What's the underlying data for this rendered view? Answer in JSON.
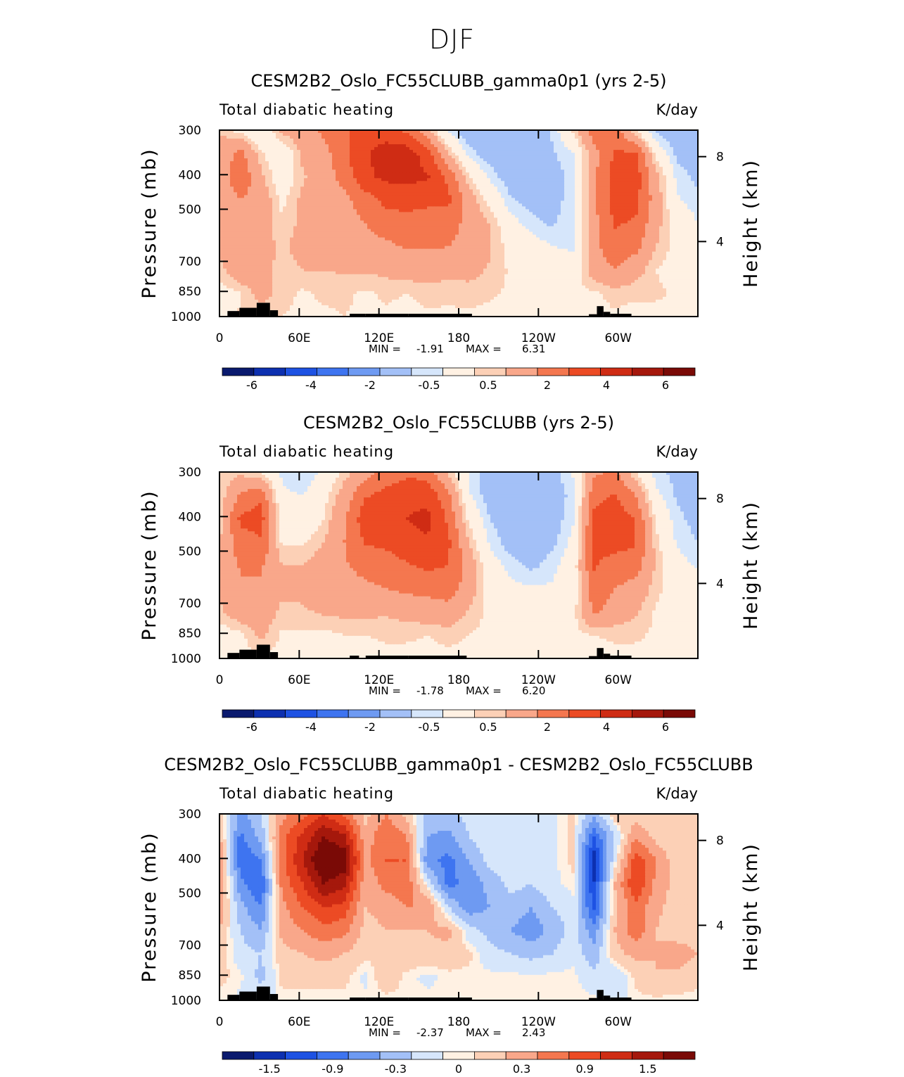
{
  "figure": {
    "title": "DJF"
  },
  "panels": [
    {
      "title": "CESM2B2_Oslo_FC55CLUBB_gamma0p1 (yrs 2-5)",
      "left_label": "Total diabatic heating",
      "right_label": "K/day",
      "ylabel": "Pressure (mb)",
      "ylabel_right": "Height (km)",
      "stats": {
        "min_label": "MIN =",
        "min": "-1.91",
        "max_label": "MAX =",
        "max": "6.31"
      }
    },
    {
      "title": "CESM2B2_Oslo_FC55CLUBB (yrs 2-5)",
      "left_label": "Total diabatic heating",
      "right_label": "K/day",
      "ylabel": "Pressure (mb)",
      "ylabel_right": "Height (km)",
      "stats": {
        "min_label": "MIN =",
        "min": "-1.78",
        "max_label": "MAX =",
        "max": "6.20"
      }
    },
    {
      "title": "CESM2B2_Oslo_FC55CLUBB_gamma0p1 - CESM2B2_Oslo_FC55CLUBB",
      "left_label": "Total diabatic heating",
      "right_label": "K/day",
      "ylabel": "Pressure (mb)",
      "ylabel_right": "Height (km)",
      "stats": {
        "min_label": "MIN =",
        "min": "-2.37",
        "max_label": "MAX =",
        "max": "2.43"
      }
    }
  ],
  "chart_data": [
    {
      "type": "heatmap",
      "title": "CESM2B2_Oslo_FC55CLUBB_gamma0p1 (yrs 2-5)",
      "x_ticks": [
        "0",
        "60E",
        "120E",
        "180",
        "120W",
        "60W"
      ],
      "y_ticks": [
        "300",
        "400",
        "500",
        "700",
        "850",
        "1000"
      ],
      "y_ticks_right": [
        "8",
        "4"
      ],
      "xlim": [
        0,
        360
      ],
      "ylim": [
        1000,
        300
      ],
      "y_scale": "log",
      "colorbar_labels": [
        "-6",
        "-4",
        "-2",
        "-0.5",
        "0.5",
        "2",
        "4",
        "6"
      ],
      "colors": [
        "#0a1a6e",
        "#0d30b0",
        "#1e52e3",
        "#3e74f0",
        "#6e9af2",
        "#a3c0f7",
        "#d6e6fb",
        "#fff1e3",
        "#fcd0b6",
        "#f9a78a",
        "#f4774f",
        "#ec4b24",
        "#cf2c14",
        "#a5180c",
        "#7a0a06"
      ],
      "values": [
        [
          1.0,
          0.2,
          -0.4,
          1.2,
          1.6,
          2.2,
          2.9,
          3.4,
          3.6,
          2.8,
          1.2,
          -0.7,
          -1.6,
          -1.8,
          -1.7,
          -1.4,
          -0.9,
          0.6,
          2.6,
          2.6,
          0.4,
          -1.2,
          -1.6,
          -1.5
        ],
        [
          1.2,
          2.4,
          0.6,
          -0.3,
          1.2,
          1.6,
          2.8,
          3.9,
          4.4,
          4.6,
          3.5,
          1.0,
          -0.7,
          -1.5,
          -1.6,
          -1.6,
          -1.1,
          -0.6,
          1.6,
          3.1,
          3.2,
          0.2,
          -1.2,
          -1.4
        ],
        [
          1.3,
          2.8,
          1.2,
          -0.1,
          0.9,
          1.4,
          2.4,
          3.8,
          4.2,
          4.3,
          4.1,
          2.8,
          0.6,
          -0.6,
          -1.5,
          -1.5,
          -1.3,
          -0.8,
          1.8,
          3.5,
          3.6,
          1.3,
          -0.7,
          -1.2
        ],
        [
          1.2,
          2.0,
          1.6,
          0.3,
          1.2,
          1.3,
          1.7,
          2.5,
          3.3,
          3.5,
          3.2,
          3.2,
          1.5,
          0.2,
          -0.9,
          -1.3,
          -1.3,
          -0.7,
          1.8,
          3.4,
          3.3,
          1.5,
          -0.4,
          -0.8
        ],
        [
          1.4,
          2.0,
          1.4,
          0.6,
          1.2,
          1.6,
          1.6,
          2.0,
          2.4,
          2.5,
          2.6,
          2.4,
          1.7,
          1.0,
          -0.2,
          -0.8,
          -1.1,
          -0.6,
          1.7,
          3.1,
          2.9,
          1.3,
          0.1,
          -0.5
        ],
        [
          1.2,
          1.9,
          1.4,
          0.8,
          1.4,
          1.6,
          1.6,
          1.8,
          1.8,
          2.1,
          2.1,
          2.0,
          1.7,
          1.1,
          0.2,
          -0.1,
          -0.5,
          -0.6,
          1.7,
          2.6,
          2.3,
          1.0,
          0.2,
          0.2
        ],
        [
          0.7,
          1.8,
          1.6,
          0.6,
          1.0,
          1.0,
          1.1,
          1.1,
          1.2,
          1.4,
          1.4,
          1.3,
          1.3,
          0.9,
          0.4,
          0.1,
          0.0,
          -0.1,
          1.5,
          2.0,
          1.4,
          0.5,
          0.2,
          0.1
        ],
        [
          0.2,
          0.4,
          1.4,
          0.7,
          0.4,
          0.6,
          0.6,
          0.4,
          0.6,
          0.5,
          0.7,
          0.6,
          0.7,
          0.6,
          0.4,
          0.3,
          0.3,
          0.4,
          0.4,
          0.7,
          0.6,
          0.6,
          0.4,
          0.4
        ],
        [
          0.2,
          0.6,
          0.5,
          0.5,
          0.4,
          0.4,
          0.5,
          0.4,
          0.4,
          0.3,
          0.4,
          0.4,
          0.4,
          0.3,
          0.3,
          0.4,
          0.3,
          0.3,
          0.3,
          0.4,
          0.3,
          0.3,
          0.3,
          0.3
        ]
      ]
    },
    {
      "type": "heatmap",
      "title": "CESM2B2_Oslo_FC55CLUBB (yrs 2-5)",
      "x_ticks": [
        "0",
        "60E",
        "120E",
        "180",
        "120W",
        "60W"
      ],
      "y_ticks": [
        "300",
        "400",
        "500",
        "700",
        "850",
        "1000"
      ],
      "y_ticks_right": [
        "8",
        "4"
      ],
      "xlim": [
        0,
        360
      ],
      "ylim": [
        1000,
        300
      ],
      "y_scale": "log",
      "colorbar_labels": [
        "-6",
        "-4",
        "-2",
        "-0.5",
        "0.5",
        "2",
        "4",
        "6"
      ],
      "colors": [
        "#0a1a6e",
        "#0d30b0",
        "#1e52e3",
        "#3e74f0",
        "#6e9af2",
        "#a3c0f7",
        "#d6e6fb",
        "#fff1e3",
        "#fcd0b6",
        "#f9a78a",
        "#f4774f",
        "#ec4b24",
        "#cf2c14",
        "#a5180c",
        "#7a0a06"
      ],
      "values": [
        [
          0.5,
          0.8,
          0.4,
          -0.6,
          -1.0,
          -0.3,
          0.7,
          1.5,
          2.4,
          2.8,
          2.6,
          0.8,
          -0.6,
          -1.5,
          -1.6,
          -1.6,
          -1.4,
          -0.4,
          1.8,
          2.2,
          0.5,
          -0.8,
          -1.2,
          -1.6
        ],
        [
          0.6,
          2.1,
          2.8,
          -0.4,
          -0.5,
          0.2,
          1.4,
          2.9,
          3.3,
          3.6,
          3.7,
          2.3,
          -0.4,
          -1.4,
          -1.5,
          -1.6,
          -1.4,
          -0.8,
          2.7,
          3.1,
          2.0,
          -0.3,
          -1.1,
          -1.5
        ],
        [
          0.7,
          3.2,
          3.4,
          0.2,
          -0.3,
          0.5,
          1.9,
          3.6,
          3.8,
          4.0,
          4.3,
          2.8,
          0.3,
          -1.0,
          -1.5,
          -1.6,
          -1.4,
          -0.6,
          3.2,
          3.5,
          3.0,
          0.3,
          -0.8,
          -1.3
        ],
        [
          0.9,
          2.6,
          2.9,
          0.4,
          0.4,
          1.0,
          2.0,
          3.1,
          3.2,
          3.6,
          3.9,
          3.2,
          1.0,
          -0.6,
          -1.4,
          -1.6,
          -1.2,
          -0.3,
          3.3,
          3.4,
          3.1,
          0.7,
          -0.6,
          -1.0
        ],
        [
          1.1,
          2.1,
          2.1,
          1.0,
          1.0,
          1.4,
          1.9,
          2.3,
          2.6,
          2.9,
          3.2,
          3.0,
          1.6,
          -0.1,
          -0.7,
          -1.2,
          -0.7,
          0.0,
          3.1,
          2.6,
          2.5,
          0.9,
          -0.2,
          -0.6
        ],
        [
          1.2,
          1.9,
          1.9,
          1.2,
          1.2,
          1.5,
          1.7,
          1.8,
          2.0,
          2.2,
          2.3,
          2.5,
          1.5,
          0.0,
          -0.3,
          -0.4,
          -0.4,
          0.0,
          2.6,
          2.0,
          1.6,
          0.7,
          0.0,
          -0.2
        ],
        [
          0.8,
          1.6,
          1.6,
          0.8,
          0.9,
          1.1,
          1.2,
          1.2,
          1.1,
          1.3,
          1.5,
          1.6,
          0.9,
          0.3,
          0.0,
          -0.1,
          0.1,
          0.2,
          2.2,
          1.6,
          1.1,
          0.4,
          0.1,
          0.1
        ],
        [
          0.1,
          0.3,
          1.2,
          0.4,
          0.4,
          0.3,
          0.5,
          0.5,
          0.6,
          0.6,
          0.5,
          0.7,
          0.5,
          0.3,
          0.3,
          0.3,
          0.3,
          0.4,
          0.5,
          0.6,
          0.6,
          0.4,
          0.3,
          0.3
        ],
        [
          0.1,
          0.3,
          0.3,
          0.3,
          0.3,
          0.3,
          0.3,
          0.3,
          0.3,
          0.3,
          0.3,
          0.3,
          0.3,
          0.3,
          0.3,
          0.3,
          0.3,
          0.3,
          0.3,
          0.3,
          0.3,
          0.3,
          0.3,
          0.3
        ]
      ]
    },
    {
      "type": "heatmap",
      "title": "CESM2B2_Oslo_FC55CLUBB_gamma0p1 - CESM2B2_Oslo_FC55CLUBB",
      "x_ticks": [
        "0",
        "60E",
        "120E",
        "180",
        "120W",
        "60W"
      ],
      "y_ticks": [
        "300",
        "400",
        "500",
        "700",
        "850",
        "1000"
      ],
      "y_ticks_right": [
        "8",
        "4"
      ],
      "xlim": [
        0,
        360
      ],
      "ylim": [
        1000,
        300
      ],
      "y_scale": "log",
      "colorbar_labels": [
        "-1.5",
        "-0.9",
        "-0.3",
        "0",
        "0.3",
        "0.9",
        "1.5"
      ],
      "colors": [
        "#0a1a6e",
        "#0d30b0",
        "#1e52e3",
        "#3e74f0",
        "#6e9af2",
        "#a3c0f7",
        "#d6e6fb",
        "#fff1e3",
        "#fcd0b6",
        "#f9a78a",
        "#f4774f",
        "#ec4b24",
        "#cf2c14",
        "#a5180c",
        "#7a0a06"
      ],
      "values": [
        [
          0.3,
          -0.7,
          -0.3,
          0.5,
          0.8,
          1.2,
          0.8,
          0.2,
          0.6,
          0.2,
          -0.4,
          -0.4,
          -0.2,
          -0.1,
          -0.1,
          -0.1,
          -0.1,
          0.1,
          -0.5,
          0.2,
          0.1,
          0.1,
          0.1,
          0.1
        ],
        [
          0.4,
          -1.0,
          -0.5,
          0.8,
          1.3,
          1.8,
          1.6,
          0.4,
          0.9,
          0.6,
          -0.6,
          -0.7,
          -0.3,
          -0.1,
          -0.1,
          -0.1,
          -0.1,
          0.1,
          -1.2,
          -0.3,
          0.6,
          0.2,
          0.1,
          0.1
        ],
        [
          0.5,
          -1.1,
          -0.9,
          0.8,
          1.5,
          2.2,
          2.0,
          0.5,
          0.9,
          0.9,
          -0.8,
          -1.0,
          -0.6,
          -0.2,
          -0.1,
          -0.2,
          -0.1,
          0.1,
          -1.7,
          -0.1,
          1.1,
          0.6,
          0.1,
          0.1
        ],
        [
          0.6,
          -0.8,
          -1.2,
          0.7,
          1.2,
          1.8,
          1.6,
          0.4,
          0.7,
          0.8,
          -0.1,
          -1.0,
          -0.8,
          -0.5,
          -0.2,
          -0.3,
          -0.1,
          0.0,
          -1.5,
          0.3,
          1.2,
          0.5,
          0.2,
          0.1
        ],
        [
          0.5,
          -0.5,
          -0.9,
          0.5,
          0.9,
          1.2,
          1.1,
          0.3,
          0.4,
          0.6,
          0.6,
          -0.3,
          -0.8,
          -0.6,
          -0.4,
          -0.6,
          -0.3,
          -0.1,
          -1.3,
          0.2,
          0.8,
          0.4,
          0.1,
          0.1
        ],
        [
          0.3,
          -0.3,
          -0.6,
          0.4,
          0.6,
          0.8,
          0.7,
          0.2,
          0.3,
          0.3,
          0.3,
          0.4,
          -0.2,
          -0.4,
          -0.6,
          -0.8,
          -0.5,
          -0.2,
          -0.8,
          0.3,
          0.8,
          0.3,
          0.1,
          0.1
        ],
        [
          0.2,
          -0.2,
          -0.3,
          0.2,
          0.3,
          0.4,
          0.3,
          0.1,
          0.1,
          0.2,
          0.2,
          0.2,
          0.1,
          -0.2,
          -0.3,
          -0.4,
          -0.3,
          -0.1,
          -0.5,
          0.2,
          0.4,
          0.3,
          0.5,
          0.3
        ],
        [
          0.1,
          0.0,
          -0.4,
          0.1,
          0.1,
          0.1,
          0.1,
          -0.1,
          0.2,
          0.0,
          -0.1,
          0.0,
          0.0,
          0.0,
          0.0,
          0.0,
          0.0,
          0.0,
          -0.2,
          -0.3,
          0.1,
          0.3,
          0.2,
          0.1
        ],
        [
          0.0,
          -0.1,
          -0.1,
          0.0,
          0.0,
          0.0,
          0.0,
          0.0,
          0.0,
          0.0,
          0.0,
          0.0,
          0.0,
          0.0,
          0.0,
          0.0,
          0.0,
          0.0,
          0.0,
          -0.1,
          0.0,
          0.0,
          0.0,
          0.0
        ]
      ]
    }
  ],
  "colors": {
    "topography": "#000000",
    "frame": "#000000",
    "background": "#ffffff"
  }
}
